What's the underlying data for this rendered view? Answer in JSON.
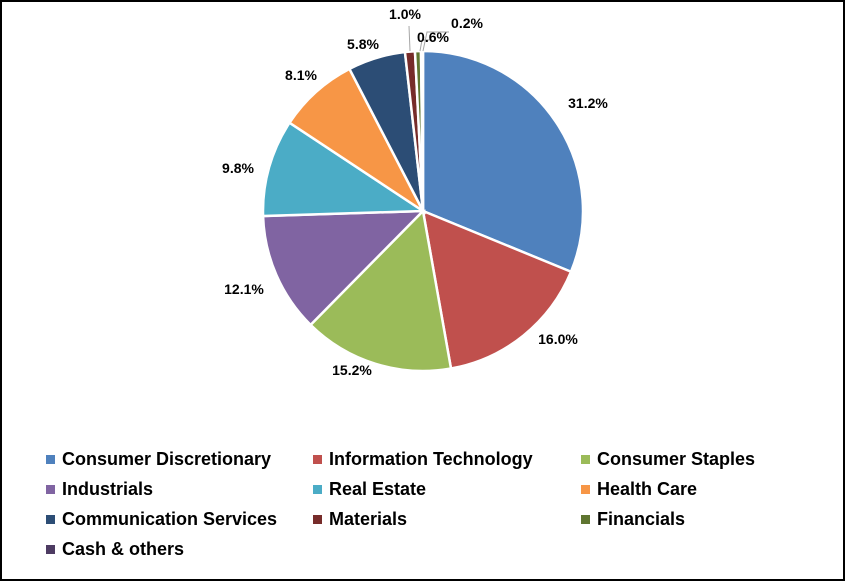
{
  "chart_data": {
    "type": "pie",
    "series": [
      {
        "label": "Consumer Discretionary",
        "value": 31.2,
        "display": "31.2%",
        "color": "#4f81bd"
      },
      {
        "label": "Information Technology",
        "value": 16.0,
        "display": "16.0%",
        "color": "#c0504d"
      },
      {
        "label": "Consumer Staples",
        "value": 15.2,
        "display": "15.2%",
        "color": "#9bbb59"
      },
      {
        "label": "Industrials",
        "value": 12.1,
        "display": "12.1%",
        "color": "#8064a2"
      },
      {
        "label": "Real Estate",
        "value": 9.8,
        "display": "9.8%",
        "color": "#4bacc6"
      },
      {
        "label": "Health Care",
        "value": 8.1,
        "display": "8.1%",
        "color": "#f79646"
      },
      {
        "label": "Communication Services",
        "value": 5.8,
        "display": "5.8%",
        "color": "#2c4d75"
      },
      {
        "label": "Materials",
        "value": 1.0,
        "display": "1.0%",
        "color": "#772c2a"
      },
      {
        "label": "Financials",
        "value": 0.6,
        "display": "0.6%",
        "color": "#5f7530"
      },
      {
        "label": "Cash & others",
        "value": 0.2,
        "display": "0.2%",
        "color": "#4d3b62"
      }
    ],
    "legend_position": "bottom",
    "start_angle": "12 o'clock, clockwise"
  }
}
